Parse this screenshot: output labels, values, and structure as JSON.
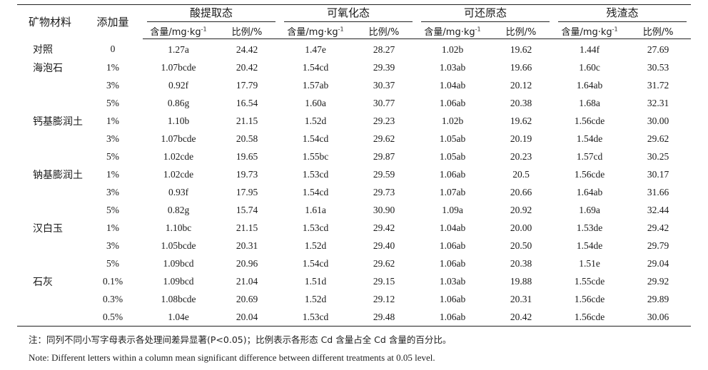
{
  "table": {
    "headers": {
      "material": "矿物材料",
      "addition": "添加量",
      "groups": [
        "酸提取态",
        "可氧化态",
        "可还原态",
        "残渣态"
      ],
      "content_label": "含量/mg·kg",
      "content_sup": "-1",
      "ratio_label": "比例/%"
    },
    "rows": [
      {
        "material": "对照",
        "addition": "0",
        "values": [
          "1.27a",
          "24.42",
          "1.47e",
          "28.27",
          "1.02b",
          "19.62",
          "1.44f",
          "27.69"
        ]
      },
      {
        "material": "海泡石",
        "addition": "1%",
        "values": [
          "1.07bcde",
          "20.42",
          "1.54cd",
          "29.39",
          "1.03ab",
          "19.66",
          "1.60c",
          "30.53"
        ]
      },
      {
        "material": "",
        "addition": "3%",
        "values": [
          "0.92f",
          "17.79",
          "1.57ab",
          "30.37",
          "1.04ab",
          "20.12",
          "1.64ab",
          "31.72"
        ]
      },
      {
        "material": "",
        "addition": "5%",
        "values": [
          "0.86g",
          "16.54",
          "1.60a",
          "30.77",
          "1.06ab",
          "20.38",
          "1.68a",
          "32.31"
        ]
      },
      {
        "material": "钙基膨润土",
        "addition": "1%",
        "values": [
          "1.10b",
          "21.15",
          "1.52d",
          "29.23",
          "1.02b",
          "19.62",
          "1.56cde",
          "30.00"
        ]
      },
      {
        "material": "",
        "addition": "3%",
        "values": [
          "1.07bcde",
          "20.58",
          "1.54cd",
          "29.62",
          "1.05ab",
          "20.19",
          "1.54de",
          "29.62"
        ]
      },
      {
        "material": "",
        "addition": "5%",
        "values": [
          "1.02cde",
          "19.65",
          "1.55bc",
          "29.87",
          "1.05ab",
          "20.23",
          "1.57cd",
          "30.25"
        ]
      },
      {
        "material": "钠基膨润土",
        "addition": "1%",
        "values": [
          "1.02cde",
          "19.73",
          "1.53cd",
          "29.59",
          "1.06ab",
          "20.5",
          "1.56cde",
          "30.17"
        ]
      },
      {
        "material": "",
        "addition": "3%",
        "values": [
          "0.93f",
          "17.95",
          "1.54cd",
          "29.73",
          "1.07ab",
          "20.66",
          "1.64ab",
          "31.66"
        ]
      },
      {
        "material": "",
        "addition": "5%",
        "values": [
          "0.82g",
          "15.74",
          "1.61a",
          "30.90",
          "1.09a",
          "20.92",
          "1.69a",
          "32.44"
        ]
      },
      {
        "material": "汉白玉",
        "addition": "1%",
        "values": [
          "1.10bc",
          "21.15",
          "1.53cd",
          "29.42",
          "1.04ab",
          "20.00",
          "1.53de",
          "29.42"
        ]
      },
      {
        "material": "",
        "addition": "3%",
        "values": [
          "1.05bcde",
          "20.31",
          "1.52d",
          "29.40",
          "1.06ab",
          "20.50",
          "1.54de",
          "29.79"
        ]
      },
      {
        "material": "",
        "addition": "5%",
        "values": [
          "1.09bcd",
          "20.96",
          "1.54cd",
          "29.62",
          "1.06ab",
          "20.38",
          "1.51e",
          "29.04"
        ]
      },
      {
        "material": "石灰",
        "addition": "0.1%",
        "values": [
          "1.09bcd",
          "21.04",
          "1.51d",
          "29.15",
          "1.03ab",
          "19.88",
          "1.55cde",
          "29.92"
        ]
      },
      {
        "material": "",
        "addition": "0.3%",
        "values": [
          "1.08bcde",
          "20.69",
          "1.52d",
          "29.12",
          "1.06ab",
          "20.31",
          "1.56cde",
          "29.89"
        ]
      },
      {
        "material": "",
        "addition": "0.5%",
        "values": [
          "1.04e",
          "20.04",
          "1.53cd",
          "29.48",
          "1.06ab",
          "20.42",
          "1.56cde",
          "30.06"
        ]
      }
    ]
  },
  "notes": {
    "cn": "注：同列不同小写字母表示各处理间差异显著(P<0.05)；比例表示各形态 Cd 含量占全 Cd 含量的百分比。",
    "en": "Note: Different letters within a column mean significant difference between different treatments at 0.05 level."
  }
}
